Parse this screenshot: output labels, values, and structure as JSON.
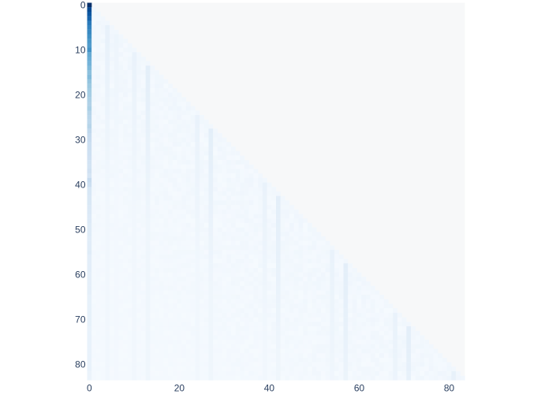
{
  "chart_data": {
    "type": "heatmap",
    "title": "",
    "xlabel": "",
    "ylabel": "",
    "n": 84,
    "xlim": [
      -0.5,
      83.5
    ],
    "ylim": [
      83.5,
      -0.5
    ],
    "mask": "lower-triangle (row >= column)",
    "colorscale": "Blues",
    "colors": {
      "low": "#f7fbff",
      "mid": "#6baed6",
      "high": "#08306b",
      "masked_area": "#f7f8f9"
    },
    "x_ticks": [
      0,
      20,
      40,
      60,
      80
    ],
    "y_ticks": [
      0,
      10,
      20,
      30,
      40,
      50,
      60,
      70,
      80
    ],
    "diagonal_value": 0.03,
    "column0_values": [
      1.0,
      0.9,
      0.85,
      0.8,
      0.72,
      0.68,
      0.66,
      0.63,
      0.6,
      0.58,
      0.62,
      0.52,
      0.5,
      0.48,
      0.45,
      0.42,
      0.44,
      0.4,
      0.38,
      0.36,
      0.35,
      0.33,
      0.32,
      0.34,
      0.3,
      0.29,
      0.28,
      0.3,
      0.27,
      0.25,
      0.24,
      0.22,
      0.22,
      0.21,
      0.2,
      0.19,
      0.18,
      0.2,
      0.17,
      0.25,
      0.22,
      0.16,
      0.16,
      0.15,
      0.15,
      0.14,
      0.14,
      0.13,
      0.13,
      0.12,
      0.12,
      0.12,
      0.11,
      0.11,
      0.11,
      0.12,
      0.1,
      0.1,
      0.1,
      0.1,
      0.09,
      0.09,
      0.09,
      0.09,
      0.09,
      0.08,
      0.08,
      0.08,
      0.08,
      0.08,
      0.08,
      0.08,
      0.07,
      0.07,
      0.07,
      0.07,
      0.07,
      0.07,
      0.07,
      0.07,
      0.07,
      0.07,
      0.06,
      0.06
    ],
    "background_value_range": [
      0.01,
      0.04
    ],
    "highlight_columns": [
      {
        "col": 4,
        "value": 0.08
      },
      {
        "col": 6,
        "value": 0.05
      },
      {
        "col": 10,
        "value": 0.07
      },
      {
        "col": 13,
        "value": 0.1
      },
      {
        "col": 24,
        "value": 0.07
      },
      {
        "col": 27,
        "value": 0.1
      },
      {
        "col": 39,
        "value": 0.07
      },
      {
        "col": 42,
        "value": 0.1
      },
      {
        "col": 54,
        "value": 0.07
      },
      {
        "col": 57,
        "value": 0.1
      },
      {
        "col": 68,
        "value": 0.07
      },
      {
        "col": 71,
        "value": 0.1
      },
      {
        "col": 81,
        "value": 0.08
      }
    ]
  }
}
